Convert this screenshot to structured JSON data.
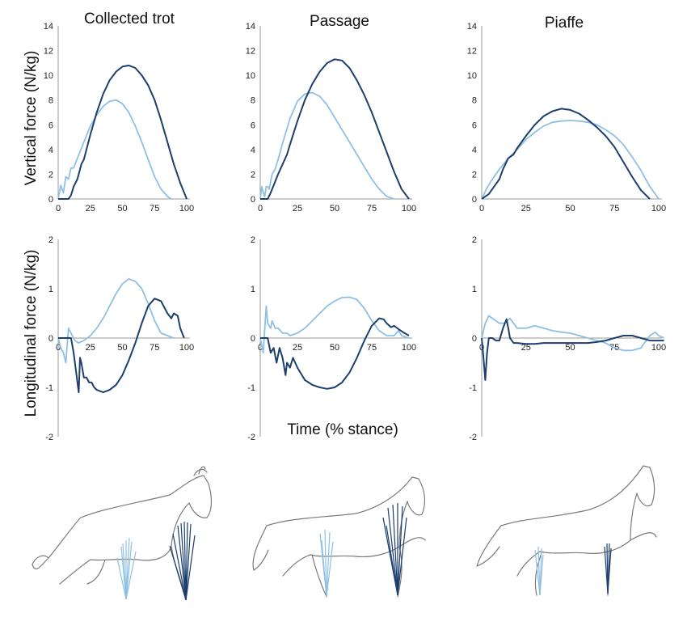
{
  "figure": {
    "column_titles": [
      "Collected trot",
      "Passage",
      "Piaffe"
    ],
    "row_ylabels": [
      "Vertical force (N/kg)",
      "Longitudinal force (N/kg)"
    ],
    "xlabel": "Time (% stance)",
    "colors": {
      "forelimb": "#8ec0e6",
      "hindlimb": "#1c3f6e",
      "axis": "#9a9a9a"
    }
  },
  "chart_data": [
    {
      "type": "line",
      "panel": "Collected trot - vertical",
      "xlim": [
        0,
        100
      ],
      "ylim": [
        0,
        14
      ],
      "xticks": [
        "0",
        "25",
        "50",
        "75",
        "100"
      ],
      "yticks": [
        "0",
        "2",
        "4",
        "6",
        "8",
        "10",
        "12",
        "14"
      ],
      "series": [
        {
          "color": "#8ec0e6",
          "x": [
            0,
            2,
            4,
            6,
            8,
            10,
            12,
            15,
            20,
            25,
            30,
            35,
            40,
            45,
            50,
            55,
            60,
            65,
            70,
            75,
            80,
            85,
            88
          ],
          "y": [
            0,
            1.1,
            0.5,
            1.8,
            1.6,
            2.5,
            2.5,
            3.3,
            4.6,
            5.9,
            6.8,
            7.5,
            7.9,
            8.0,
            7.7,
            7.0,
            5.9,
            4.6,
            3.2,
            1.8,
            0.8,
            0.2,
            0
          ]
        },
        {
          "color": "#1c3f6e",
          "x": [
            0,
            8,
            10,
            12,
            15,
            18,
            20,
            25,
            30,
            35,
            40,
            45,
            50,
            55,
            60,
            65,
            70,
            75,
            80,
            85,
            90,
            95,
            100
          ],
          "y": [
            0,
            0,
            0.3,
            1.0,
            1.6,
            2.8,
            3.2,
            5.2,
            7.0,
            8.5,
            9.6,
            10.3,
            10.7,
            10.8,
            10.6,
            10.0,
            9.2,
            8.0,
            6.4,
            4.6,
            2.8,
            1.3,
            0
          ]
        }
      ]
    },
    {
      "type": "line",
      "panel": "Passage - vertical",
      "xlim": [
        0,
        100
      ],
      "ylim": [
        0,
        14
      ],
      "xticks": [
        "0",
        "25",
        "50",
        "75",
        "100"
      ],
      "yticks": [
        "0",
        "2",
        "4",
        "6",
        "8",
        "10",
        "12",
        "14"
      ],
      "series": [
        {
          "color": "#8ec0e6",
          "x": [
            0,
            1,
            2,
            3,
            4,
            5,
            6,
            8,
            10,
            12,
            15,
            20,
            25,
            30,
            35,
            40,
            45,
            50,
            55,
            60,
            65,
            70,
            75,
            80,
            85,
            90
          ],
          "y": [
            0,
            1.0,
            0.5,
            0.2,
            1.0,
            1.0,
            0.8,
            2.0,
            2.4,
            3.2,
            4.5,
            6.5,
            7.9,
            8.5,
            8.6,
            8.3,
            7.6,
            6.6,
            5.6,
            4.6,
            3.6,
            2.6,
            1.6,
            0.8,
            0.2,
            0
          ]
        },
        {
          "color": "#1c3f6e",
          "x": [
            0,
            5,
            7,
            10,
            12,
            15,
            18,
            20,
            25,
            30,
            35,
            40,
            45,
            50,
            55,
            60,
            65,
            70,
            75,
            80,
            85,
            90,
            95,
            100
          ],
          "y": [
            0,
            0,
            0.5,
            1.4,
            2.0,
            2.8,
            3.6,
            4.4,
            6.3,
            8.0,
            9.3,
            10.3,
            11.0,
            11.3,
            11.2,
            10.6,
            9.6,
            8.4,
            7.0,
            5.4,
            3.8,
            2.2,
            0.8,
            0
          ]
        }
      ]
    },
    {
      "type": "line",
      "panel": "Piaffe - vertical",
      "xlim": [
        0,
        100
      ],
      "ylim": [
        0,
        14
      ],
      "xticks": [
        "0",
        "25",
        "50",
        "75",
        "100"
      ],
      "yticks": [
        "0",
        "2",
        "4",
        "6",
        "8",
        "10",
        "12",
        "14"
      ],
      "series": [
        {
          "color": "#8ec0e6",
          "x": [
            0,
            3,
            6,
            10,
            15,
            20,
            25,
            30,
            35,
            40,
            45,
            50,
            55,
            60,
            65,
            70,
            75,
            80,
            85,
            90,
            95,
            100
          ],
          "y": [
            0,
            0.9,
            1.6,
            2.4,
            3.3,
            4.0,
            4.8,
            5.4,
            5.9,
            6.2,
            6.3,
            6.35,
            6.3,
            6.2,
            6.0,
            5.6,
            5.1,
            4.4,
            3.4,
            2.3,
            1.0,
            0
          ]
        },
        {
          "color": "#1c3f6e",
          "x": [
            0,
            4,
            6,
            8,
            10,
            12,
            15,
            18,
            20,
            25,
            30,
            35,
            40,
            45,
            50,
            55,
            60,
            65,
            70,
            75,
            80,
            85,
            90,
            95
          ],
          "y": [
            0,
            0.4,
            0.8,
            1.2,
            1.6,
            2.4,
            3.3,
            3.6,
            4.1,
            5.1,
            6.0,
            6.7,
            7.1,
            7.3,
            7.2,
            6.9,
            6.4,
            5.8,
            5.1,
            4.2,
            3.0,
            1.8,
            0.7,
            0
          ]
        }
      ]
    },
    {
      "type": "line",
      "panel": "Collected trot - longitudinal",
      "xlim": [
        0,
        100
      ],
      "ylim": [
        -2,
        2
      ],
      "xticks": [
        "0",
        "25",
        "50",
        "75",
        "100"
      ],
      "yticks": [
        "-2",
        "-1",
        "0",
        "1",
        "2"
      ],
      "series": [
        {
          "color": "#8ec0e6",
          "x": [
            0,
            2,
            4,
            6,
            8,
            10,
            13,
            16,
            20,
            25,
            30,
            35,
            40,
            45,
            50,
            55,
            60,
            65,
            70,
            75,
            80,
            85,
            90
          ],
          "y": [
            0,
            -0.2,
            -0.3,
            -0.5,
            0.2,
            0.1,
            -0.05,
            -0.1,
            -0.05,
            0.05,
            0.2,
            0.4,
            0.65,
            0.9,
            1.1,
            1.2,
            1.15,
            1.0,
            0.7,
            0.35,
            0.1,
            0.05,
            0
          ]
        },
        {
          "color": "#1c3f6e",
          "x": [
            0,
            10,
            12,
            14,
            16,
            17,
            18,
            20,
            22,
            24,
            26,
            28,
            30,
            35,
            40,
            45,
            50,
            55,
            60,
            65,
            70,
            75,
            80,
            85,
            88,
            90,
            93,
            95,
            98
          ],
          "y": [
            0,
            0,
            -0.3,
            -0.7,
            -1.1,
            -0.4,
            -0.5,
            -0.8,
            -0.8,
            -0.9,
            -0.9,
            -1.0,
            -1.05,
            -1.1,
            -1.05,
            -0.95,
            -0.75,
            -0.45,
            -0.1,
            0.3,
            0.65,
            0.8,
            0.75,
            0.5,
            0.4,
            0.5,
            0.45,
            0.2,
            0
          ]
        }
      ]
    },
    {
      "type": "line",
      "panel": "Passage - longitudinal",
      "xlim": [
        0,
        100
      ],
      "ylim": [
        -2,
        2
      ],
      "xticks": [
        "0",
        "25",
        "50",
        "75",
        "100"
      ],
      "yticks": [
        "-2",
        "-1",
        "0",
        "1",
        "2"
      ],
      "series": [
        {
          "color": "#8ec0e6",
          "x": [
            0,
            2,
            4,
            5,
            7,
            8,
            10,
            12,
            15,
            18,
            20,
            25,
            30,
            35,
            40,
            45,
            50,
            55,
            60,
            65,
            70,
            75,
            80,
            85,
            90,
            93,
            95,
            100
          ],
          "y": [
            0,
            -0.3,
            0.65,
            0.3,
            0.2,
            0.35,
            0.2,
            0.2,
            0.1,
            0.1,
            0.05,
            0.1,
            0.2,
            0.35,
            0.5,
            0.65,
            0.75,
            0.82,
            0.83,
            0.78,
            0.6,
            0.35,
            0.15,
            0.05,
            0.05,
            0.15,
            0.05,
            0
          ]
        },
        {
          "color": "#1c3f6e",
          "x": [
            0,
            5,
            7,
            9,
            11,
            13,
            15,
            17,
            18,
            20,
            22,
            25,
            30,
            35,
            40,
            45,
            50,
            55,
            60,
            65,
            70,
            75,
            80,
            83,
            85,
            88,
            90,
            93,
            96,
            100
          ],
          "y": [
            0,
            0,
            -0.3,
            -0.2,
            -0.5,
            -0.2,
            -0.4,
            -0.75,
            -0.5,
            -0.6,
            -0.4,
            -0.6,
            -0.85,
            -0.95,
            -1.0,
            -1.03,
            -1.0,
            -0.9,
            -0.7,
            -0.4,
            -0.05,
            0.25,
            0.4,
            0.38,
            0.3,
            0.22,
            0.25,
            0.18,
            0.12,
            0.05
          ]
        }
      ]
    },
    {
      "type": "line",
      "panel": "Piaffe - longitudinal",
      "xlim": [
        0,
        100
      ],
      "ylim": [
        -2,
        2
      ],
      "xticks": [
        "0",
        "25",
        "50",
        "75",
        "100"
      ],
      "yticks": [
        "-2",
        "-1",
        "0",
        "1",
        "2"
      ],
      "series": [
        {
          "color": "#8ec0e6",
          "x": [
            0,
            2,
            4,
            6,
            8,
            10,
            13,
            16,
            20,
            25,
            30,
            35,
            40,
            45,
            50,
            55,
            60,
            65,
            70,
            75,
            80,
            85,
            90,
            95,
            98,
            100,
            103
          ],
          "y": [
            0,
            0.3,
            0.45,
            0.4,
            0.35,
            0.3,
            0.3,
            0.4,
            0.2,
            0.2,
            0.25,
            0.2,
            0.15,
            0.12,
            0.1,
            0.05,
            0.0,
            -0.05,
            -0.1,
            -0.2,
            -0.25,
            -0.25,
            -0.2,
            0.05,
            0.12,
            0.05,
            0
          ]
        },
        {
          "color": "#1c3f6e",
          "x": [
            0,
            1,
            2,
            3,
            4,
            6,
            8,
            10,
            12,
            14,
            15,
            16,
            18,
            20,
            25,
            30,
            35,
            40,
            45,
            50,
            55,
            60,
            65,
            70,
            75,
            80,
            85,
            90,
            95,
            100,
            103
          ],
          "y": [
            0,
            -0.4,
            -0.85,
            -0.3,
            0.0,
            0.0,
            -0.05,
            -0.05,
            0.2,
            0.38,
            0.2,
            0.0,
            -0.1,
            -0.1,
            -0.12,
            -0.12,
            -0.1,
            -0.1,
            -0.1,
            -0.1,
            -0.1,
            -0.1,
            -0.08,
            -0.05,
            0.0,
            0.05,
            0.05,
            0.0,
            -0.05,
            -0.05,
            -0.05
          ]
        }
      ]
    }
  ]
}
